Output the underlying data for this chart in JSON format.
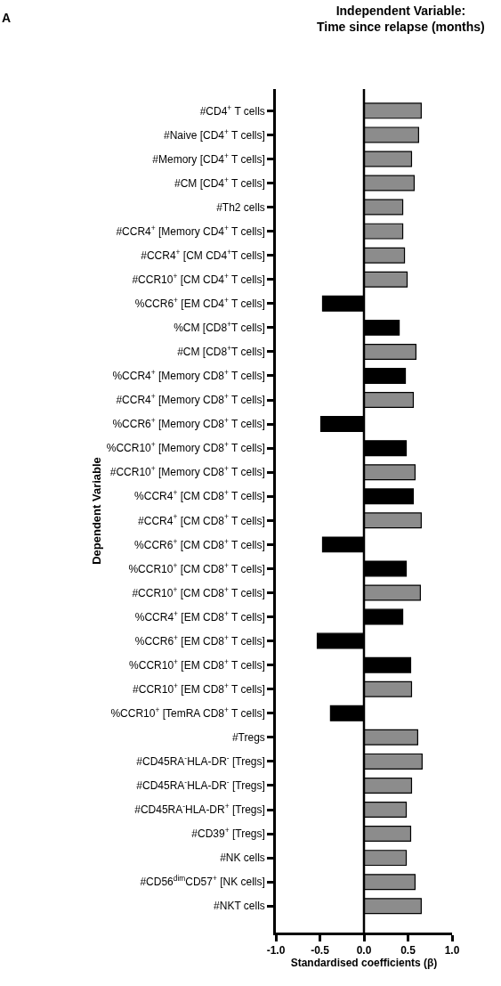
{
  "chart_data": {
    "type": "bar",
    "orientation": "horizontal",
    "title": "Independent Variable:\nTime since relapse (months)",
    "xlabel": "Standardised coefficients (β)",
    "ylabel": "Dependent Variable",
    "annotations": [
      "A"
    ],
    "categories": [
      "#CD4$^{+}$ T cells",
      "#Naive [CD4$^{+}$ T cells]",
      "#Memory [CD4$^{+}$ T cells]",
      "#CM [CD4$^{+}$ T cells]",
      "#Th2 cells",
      "#CCR4$^{+}$ [Memory CD4$^{+}$ T cells]",
      "#CCR4$^{+}$ [CM CD4$^{+}$T cells]",
      "#CCR10$^{+}$ [CM CD4$^{+}$ T cells]",
      "%CCR6$^{+}$ [EM CD4$^{+}$ T cells]",
      "%CM [CD8$^{+}$T cells]",
      "#CM [CD8$^{+}$T cells]",
      "%CCR4$^{+}$ [Memory CD8$^{+}$ T cells]",
      "#CCR4$^{+}$ [Memory CD8$^{+}$ T cells]",
      "%CCR6$^{+}$ [Memory CD8$^{+}$ T cells]",
      "%CCR10$^{+}$ [Memory CD8$^{+}$ T cells]",
      "#CCR10$^{+}$ [Memory CD8$^{+}$ T cells]",
      "%CCR4$^{+}$ [CM CD8$^{+}$ T cells]",
      "#CCR4$^{+}$ [CM CD8$^{+}$ T cells]",
      "%CCR6$^{+}$ [CM CD8$^{+}$ T cells]",
      "%CCR10$^{+}$ [CM CD8$^{+}$ T cells]",
      "#CCR10$^{+}$ [CM CD8$^{+}$ T cells]",
      "%CCR4$^{+}$ [EM CD8$^{+}$ T cells]",
      "%CCR6$^{+}$ [EM CD8$^{+}$ T cells]",
      "%CCR10$^{+}$ [EM CD8$^{+}$ T cells]",
      "#CCR10$^{+}$ [EM CD8$^{+}$ T cells]",
      "%CCR10$^{+}$ [TemRA CD8$^{+}$ T cells]",
      "#Tregs",
      "#CD45RA$^{-}$HLA-DR$^{-}$ [Tregs]",
      "#CD45RA$^{-}$HLA-DR$^{-}$ [Tregs]",
      "#CD45RA$^{-}$HLA-DR$^{+}$ [Tregs]",
      "#CD39$^{+}$ [Tregs]",
      "#NK cells",
      "#CD56$^{dim}$CD57$^{+}$ [NK cells]",
      "#NKT cells"
    ],
    "values": [
      0.65,
      0.62,
      0.54,
      0.57,
      0.44,
      0.44,
      0.46,
      0.49,
      -0.47,
      0.4,
      0.59,
      0.47,
      0.56,
      -0.49,
      0.48,
      0.58,
      0.56,
      0.65,
      -0.47,
      0.48,
      0.64,
      0.44,
      -0.53,
      0.53,
      0.54,
      -0.38,
      0.61,
      0.66,
      0.54,
      0.48,
      0.53,
      0.48,
      0.58,
      0.65
    ],
    "colors": [
      "#8c8c8c",
      "#8c8c8c",
      "#8c8c8c",
      "#8c8c8c",
      "#8c8c8c",
      "#8c8c8c",
      "#8c8c8c",
      "#8c8c8c",
      "#000000",
      "#000000",
      "#8c8c8c",
      "#000000",
      "#8c8c8c",
      "#000000",
      "#000000",
      "#8c8c8c",
      "#000000",
      "#8c8c8c",
      "#000000",
      "#000000",
      "#8c8c8c",
      "#000000",
      "#000000",
      "#000000",
      "#8c8c8c",
      "#000000",
      "#8c8c8c",
      "#8c8c8c",
      "#8c8c8c",
      "#8c8c8c",
      "#8c8c8c",
      "#8c8c8c",
      "#8c8c8c",
      "#8c8c8c"
    ],
    "xlim": [
      -1.0,
      1.0
    ],
    "xticks": [
      {
        "value": -1.0,
        "label": "-1.0"
      },
      {
        "value": -0.5,
        "label": "-0.5"
      },
      {
        "value": 0.0,
        "label": "0.0"
      },
      {
        "value": 0.5,
        "label": "0.5"
      },
      {
        "value": 1.0,
        "label": "1.0"
      }
    ],
    "ref_lines": [
      {
        "axis": "x",
        "value": 0,
        "color": "#000000",
        "line_style": "solid"
      }
    ],
    "legend": false
  }
}
